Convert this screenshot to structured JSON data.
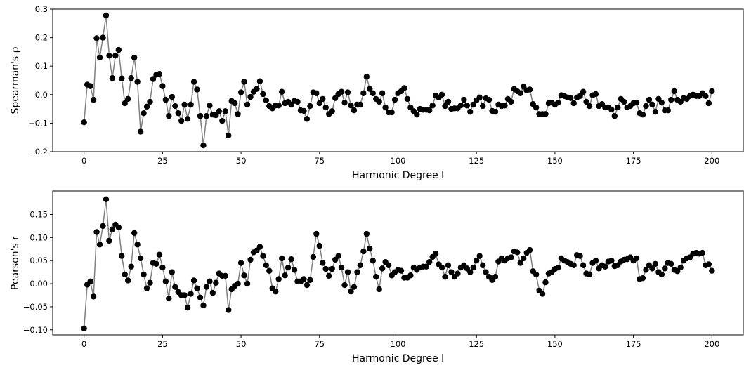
{
  "chart_data": [
    {
      "type": "line",
      "xlabel": "Harmonic Degree l",
      "ylabel": "Spearman's ρ",
      "line_color": "#808080",
      "marker_color": "#000000",
      "xlim": [
        -10,
        210
      ],
      "ylim": [
        -0.2,
        0.3
      ],
      "xticks": [
        0,
        25,
        50,
        75,
        100,
        125,
        150,
        175,
        200
      ],
      "yticks": [
        {
          "value": -0.2,
          "label": "−0.2"
        },
        {
          "value": -0.1,
          "label": "−0.1"
        },
        {
          "value": 0,
          "label": "0.0"
        },
        0.1,
        0.2,
        0.3
      ],
      "x": [
        0,
        1,
        2,
        3,
        4,
        5,
        6,
        7,
        8,
        9,
        10,
        11,
        12,
        13,
        14,
        15,
        16,
        17,
        18,
        19,
        20,
        21,
        22,
        23,
        24,
        25,
        26,
        27,
        28,
        29,
        30,
        31,
        32,
        33,
        34,
        35,
        36,
        37,
        38,
        39,
        40,
        41,
        42,
        43,
        44,
        45,
        46,
        47,
        48,
        49,
        50,
        51,
        52,
        53,
        54,
        55,
        56,
        57,
        58,
        59,
        60,
        61,
        62,
        63,
        64,
        65,
        66,
        67,
        68,
        69,
        70,
        71,
        72,
        73,
        74,
        75,
        76,
        77,
        78,
        79,
        80,
        81,
        82,
        83,
        84,
        85,
        86,
        87,
        88,
        89,
        90,
        91,
        92,
        93,
        94,
        95,
        96,
        97,
        98,
        99,
        100,
        101,
        102,
        103,
        104,
        105,
        106,
        107,
        108,
        109,
        110,
        111,
        112,
        113,
        114,
        115,
        116,
        117,
        118,
        119,
        120,
        121,
        122,
        123,
        124,
        125,
        126,
        127,
        128,
        129,
        130,
        131,
        132,
        133,
        134,
        135,
        136,
        137,
        138,
        139,
        140,
        141,
        142,
        143,
        144,
        145,
        146,
        147,
        148,
        149,
        150,
        151,
        152,
        153,
        154,
        155,
        156,
        157,
        158,
        159,
        160,
        161,
        162,
        163,
        164,
        165,
        166,
        167,
        168,
        169,
        170,
        171,
        172,
        173,
        174,
        175,
        176,
        177,
        178,
        179,
        180,
        181,
        182,
        183,
        184,
        185,
        186,
        187,
        188,
        189,
        190,
        191,
        192,
        193,
        194,
        195,
        196,
        197,
        198,
        199,
        200
      ],
      "values": [
        -0.097,
        0.035,
        0.03,
        -0.018,
        0.198,
        0.13,
        0.2,
        0.278,
        0.137,
        0.058,
        0.137,
        0.157,
        0.057,
        -0.03,
        -0.015,
        0.058,
        0.13,
        0.045,
        -0.13,
        -0.065,
        -0.042,
        -0.025,
        0.055,
        0.07,
        0.073,
        0.03,
        -0.018,
        -0.075,
        -0.008,
        -0.04,
        -0.065,
        -0.092,
        -0.035,
        -0.085,
        -0.035,
        0.045,
        0.018,
        -0.075,
        -0.178,
        -0.075,
        -0.038,
        -0.07,
        -0.072,
        -0.058,
        -0.092,
        -0.058,
        -0.143,
        -0.022,
        -0.03,
        -0.068,
        0.008,
        0.045,
        -0.035,
        -0.008,
        0.01,
        0.02,
        0.047,
        0.002,
        -0.02,
        -0.04,
        -0.048,
        -0.038,
        -0.038,
        0.01,
        -0.03,
        -0.025,
        -0.035,
        -0.022,
        -0.025,
        -0.055,
        -0.057,
        -0.085,
        -0.04,
        0.008,
        0.005,
        -0.03,
        -0.015,
        -0.045,
        -0.068,
        -0.058,
        -0.012,
        0.002,
        0.01,
        -0.028,
        0.008,
        -0.038,
        -0.055,
        -0.035,
        -0.035,
        0.005,
        0.063,
        0.02,
        0.005,
        -0.015,
        -0.025,
        0.005,
        -0.045,
        -0.062,
        -0.062,
        -0.018,
        0.005,
        0.012,
        0.023,
        -0.015,
        -0.045,
        -0.058,
        -0.07,
        -0.05,
        -0.053,
        -0.053,
        -0.055,
        -0.038,
        -0.003,
        -0.01,
        0.0,
        -0.04,
        -0.025,
        -0.05,
        -0.048,
        -0.048,
        -0.038,
        -0.018,
        -0.038,
        -0.06,
        -0.035,
        -0.02,
        -0.01,
        -0.04,
        -0.013,
        -0.018,
        -0.057,
        -0.06,
        -0.035,
        -0.04,
        -0.038,
        -0.015,
        -0.025,
        0.02,
        0.012,
        0.005,
        0.028,
        0.015,
        0.018,
        -0.033,
        -0.045,
        -0.068,
        -0.068,
        -0.068,
        -0.03,
        -0.028,
        -0.035,
        -0.028,
        -0.002,
        -0.005,
        -0.01,
        -0.012,
        -0.03,
        -0.01,
        -0.005,
        0.01,
        -0.025,
        -0.04,
        -0.002,
        0.002,
        -0.04,
        -0.033,
        -0.045,
        -0.045,
        -0.052,
        -0.075,
        -0.045,
        -0.015,
        -0.025,
        -0.045,
        -0.04,
        -0.03,
        -0.028,
        -0.065,
        -0.07,
        -0.04,
        -0.018,
        -0.035,
        -0.06,
        -0.015,
        -0.028,
        -0.055,
        -0.055,
        -0.018,
        0.012,
        -0.018,
        -0.025,
        -0.012,
        -0.015,
        -0.005,
        0.0,
        -0.005,
        -0.005,
        0.005,
        -0.005,
        -0.03,
        0.012
      ]
    },
    {
      "type": "line",
      "xlabel": "Harmonic Degree l",
      "ylabel": "Pearson's r",
      "line_color": "#808080",
      "marker_color": "#000000",
      "xlim": [
        -10,
        210
      ],
      "ylim": [
        -0.111,
        0.201
      ],
      "xticks": [
        0,
        25,
        50,
        75,
        100,
        125,
        150,
        175,
        200
      ],
      "yticks": [
        {
          "value": -0.1,
          "label": "−0.10"
        },
        {
          "value": -0.05,
          "label": "−0.05"
        },
        {
          "value": 0,
          "label": "0.00"
        },
        0.05,
        {
          "value": 0.1,
          "label": "0.10"
        },
        0.15
      ],
      "x": [
        0,
        1,
        2,
        3,
        4,
        5,
        6,
        7,
        8,
        9,
        10,
        11,
        12,
        13,
        14,
        15,
        16,
        17,
        18,
        19,
        20,
        21,
        22,
        23,
        24,
        25,
        26,
        27,
        28,
        29,
        30,
        31,
        32,
        33,
        34,
        35,
        36,
        37,
        38,
        39,
        40,
        41,
        42,
        43,
        44,
        45,
        46,
        47,
        48,
        49,
        50,
        51,
        52,
        53,
        54,
        55,
        56,
        57,
        58,
        59,
        60,
        61,
        62,
        63,
        64,
        65,
        66,
        67,
        68,
        69,
        70,
        71,
        72,
        73,
        74,
        75,
        76,
        77,
        78,
        79,
        80,
        81,
        82,
        83,
        84,
        85,
        86,
        87,
        88,
        89,
        90,
        91,
        92,
        93,
        94,
        95,
        96,
        97,
        98,
        99,
        100,
        101,
        102,
        103,
        104,
        105,
        106,
        107,
        108,
        109,
        110,
        111,
        112,
        113,
        114,
        115,
        116,
        117,
        118,
        119,
        120,
        121,
        122,
        123,
        124,
        125,
        126,
        127,
        128,
        129,
        130,
        131,
        132,
        133,
        134,
        135,
        136,
        137,
        138,
        139,
        140,
        141,
        142,
        143,
        144,
        145,
        146,
        147,
        148,
        149,
        150,
        151,
        152,
        153,
        154,
        155,
        156,
        157,
        158,
        159,
        160,
        161,
        162,
        163,
        164,
        165,
        166,
        167,
        168,
        169,
        170,
        171,
        172,
        173,
        174,
        175,
        176,
        177,
        178,
        179,
        180,
        181,
        182,
        183,
        184,
        185,
        186,
        187,
        188,
        189,
        190,
        191,
        192,
        193,
        194,
        195,
        196,
        197,
        198,
        199,
        200
      ],
      "values": [
        -0.097,
        -0.002,
        0.005,
        -0.028,
        0.112,
        0.085,
        0.125,
        0.183,
        0.093,
        0.118,
        0.128,
        0.122,
        0.06,
        0.02,
        0.007,
        0.037,
        0.11,
        0.085,
        0.055,
        0.02,
        -0.01,
        0.002,
        0.045,
        0.043,
        0.063,
        0.035,
        0.005,
        -0.032,
        0.025,
        -0.007,
        -0.018,
        -0.025,
        -0.025,
        -0.052,
        -0.022,
        0.007,
        -0.01,
        -0.03,
        -0.047,
        -0.007,
        0.005,
        -0.02,
        0.002,
        0.022,
        0.017,
        0.017,
        -0.057,
        -0.012,
        -0.005,
        0.0,
        0.045,
        0.018,
        0.0,
        0.052,
        0.068,
        0.072,
        0.08,
        0.06,
        0.04,
        0.028,
        -0.01,
        -0.017,
        0.01,
        0.055,
        0.018,
        0.035,
        0.053,
        0.03,
        0.005,
        0.005,
        0.01,
        -0.003,
        0.008,
        0.058,
        0.108,
        0.082,
        0.045,
        0.032,
        0.017,
        0.032,
        0.052,
        0.06,
        0.035,
        -0.003,
        0.025,
        -0.017,
        -0.007,
        0.025,
        0.04,
        0.07,
        0.108,
        0.076,
        0.05,
        0.015,
        -0.012,
        0.033,
        0.047,
        0.04,
        0.018,
        0.025,
        0.03,
        0.028,
        0.013,
        0.013,
        0.018,
        0.035,
        0.03,
        0.035,
        0.037,
        0.037,
        0.047,
        0.058,
        0.065,
        0.042,
        0.035,
        0.015,
        0.04,
        0.025,
        0.015,
        0.022,
        0.035,
        0.04,
        0.033,
        0.025,
        0.035,
        0.05,
        0.06,
        0.04,
        0.025,
        0.015,
        0.008,
        0.015,
        0.048,
        0.055,
        0.05,
        0.055,
        0.057,
        0.07,
        0.068,
        0.045,
        0.055,
        0.067,
        0.073,
        0.027,
        0.02,
        -0.015,
        -0.022,
        0.003,
        0.022,
        0.025,
        0.032,
        0.035,
        0.055,
        0.05,
        0.047,
        0.043,
        0.04,
        0.062,
        0.06,
        0.04,
        0.022,
        0.02,
        0.045,
        0.05,
        0.033,
        0.04,
        0.037,
        0.048,
        0.05,
        0.038,
        0.04,
        0.048,
        0.052,
        0.053,
        0.057,
        0.05,
        0.055,
        0.01,
        0.012,
        0.03,
        0.04,
        0.033,
        0.043,
        0.025,
        0.02,
        0.033,
        0.045,
        0.043,
        0.03,
        0.027,
        0.035,
        0.05,
        0.055,
        0.057,
        0.065,
        0.067,
        0.065,
        0.067,
        0.04,
        0.042,
        0.028
      ]
    }
  ]
}
